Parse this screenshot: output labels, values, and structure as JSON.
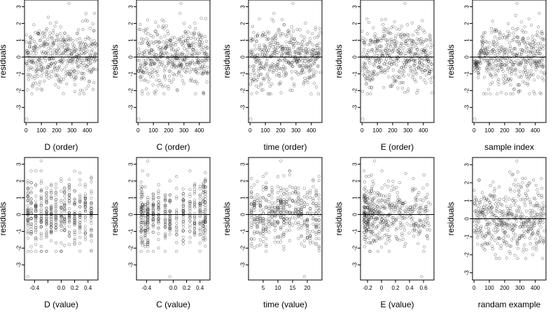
{
  "chart_data": [
    {
      "type": "scatter",
      "xlabel": "D (order)",
      "ylabel": "residuals",
      "xlim": [
        -10,
        470
      ],
      "ylim": [
        -3.9,
        3.4
      ],
      "xticks": [
        0,
        100,
        200,
        300,
        400
      ],
      "yticks": [
        -3,
        -2,
        -1,
        0,
        1,
        2,
        3
      ],
      "hline": 0,
      "gen": {
        "kind": "order",
        "n": 460
      }
    },
    {
      "type": "scatter",
      "xlabel": "C (order)",
      "ylabel": "residuals",
      "xlim": [
        -10,
        470
      ],
      "ylim": [
        -3.9,
        3.4
      ],
      "xticks": [
        0,
        100,
        200,
        300,
        400
      ],
      "yticks": [
        -3,
        -2,
        -1,
        0,
        1,
        2,
        3
      ],
      "hline": 0,
      "gen": {
        "kind": "order",
        "n": 460
      }
    },
    {
      "type": "scatter",
      "xlabel": "time (order)",
      "ylabel": "residuals",
      "xlim": [
        -10,
        470
      ],
      "ylim": [
        -3.9,
        3.4
      ],
      "xticks": [
        0,
        100,
        200,
        300,
        400
      ],
      "yticks": [
        -3,
        -2,
        -1,
        0,
        1,
        2,
        3
      ],
      "hline": 0,
      "gen": {
        "kind": "order",
        "n": 460
      }
    },
    {
      "type": "scatter",
      "xlabel": "E (order)",
      "ylabel": "residuals",
      "xlim": [
        -10,
        470
      ],
      "ylim": [
        -3.9,
        3.4
      ],
      "xticks": [
        0,
        100,
        200,
        300,
        400
      ],
      "yticks": [
        -3,
        -2,
        -1,
        0,
        1,
        2,
        3
      ],
      "hline": 0,
      "gen": {
        "kind": "order",
        "n": 460
      }
    },
    {
      "type": "scatter",
      "xlabel": "sample index",
      "ylabel": "residuals",
      "xlim": [
        -10,
        470
      ],
      "ylim": [
        -3.9,
        3.4
      ],
      "xticks": [
        0,
        100,
        200,
        300,
        400
      ],
      "yticks": [
        -3,
        -2,
        -1,
        0,
        1,
        2,
        3
      ],
      "hline": 0,
      "gen": {
        "kind": "sample",
        "n": 460
      }
    },
    {
      "type": "scatter",
      "xlabel": "D (value)",
      "ylabel": "residuals",
      "xlim": [
        -0.55,
        0.55
      ],
      "ylim": [
        -3.9,
        3.4
      ],
      "xticks": [
        -0.4,
        -0.2,
        0.0,
        0.2,
        0.4
      ],
      "xticklabels": [
        "-0.4",
        "",
        "0.0",
        "0.2",
        "0.4"
      ],
      "yticks": [
        -3,
        -2,
        -1,
        0,
        1,
        2,
        3
      ],
      "hline": 0,
      "gen": {
        "kind": "discrete",
        "n": 460,
        "levels": [
          -0.5,
          -0.45,
          -0.38,
          -0.3,
          -0.22,
          -0.15,
          -0.08,
          0.0,
          0.05,
          0.12,
          0.2,
          0.28,
          0.36,
          0.45
        ]
      }
    },
    {
      "type": "scatter",
      "xlabel": "C (value)",
      "ylabel": "residuals",
      "xlim": [
        -0.55,
        0.55
      ],
      "ylim": [
        -3.9,
        3.4
      ],
      "xticks": [
        -0.4,
        -0.2,
        0.0,
        0.2,
        0.4
      ],
      "xticklabels": [
        "-0.4",
        "",
        "0.0",
        "0.2",
        "0.4"
      ],
      "yticks": [
        -3,
        -2,
        -1,
        0,
        1,
        2,
        3
      ],
      "hline": 0,
      "gen": {
        "kind": "discrete",
        "n": 460,
        "levels": [
          -0.48,
          -0.46,
          -0.42,
          -0.38,
          -0.3,
          -0.22,
          -0.12,
          -0.05,
          0.05,
          0.15,
          0.25,
          0.32,
          0.4,
          0.45,
          0.48
        ]
      }
    },
    {
      "type": "scatter",
      "xlabel": "time (value)",
      "ylabel": "residuals",
      "xlim": [
        0,
        25
      ],
      "ylim": [
        -3.9,
        3.4
      ],
      "xticks": [
        5,
        10,
        15,
        20
      ],
      "yticks": [
        -3,
        -2,
        -1,
        0,
        1,
        2,
        3
      ],
      "hline": 0,
      "gen": {
        "kind": "discrete",
        "n": 460,
        "levels": [
          1,
          2,
          3,
          4,
          5,
          6,
          7,
          8,
          9,
          10,
          11,
          12,
          13,
          14,
          15,
          16,
          17,
          18,
          19,
          20,
          21,
          22,
          23,
          24
        ]
      }
    },
    {
      "type": "scatter",
      "xlabel": "E (value)",
      "ylabel": "residuals",
      "xlim": [
        -0.3,
        0.75
      ],
      "ylim": [
        -3.9,
        3.4
      ],
      "xticks": [
        -0.2,
        0.0,
        0.2,
        0.4,
        0.6
      ],
      "yticks": [
        -3,
        -2,
        -1,
        0,
        1,
        2,
        3
      ],
      "hline": 0,
      "gen": {
        "kind": "skew",
        "n": 460
      }
    },
    {
      "type": "scatter",
      "xlabel": "randam example",
      "ylabel": "residuals",
      "xlim": [
        -10,
        470
      ],
      "ylim": [
        -3.4,
        3.4
      ],
      "xticks": [
        0,
        100,
        200,
        300,
        400
      ],
      "yticks": [
        -3,
        -2,
        -1,
        0,
        1,
        2,
        3
      ],
      "hline": 0,
      "gen": {
        "kind": "order",
        "n": 460
      }
    }
  ]
}
